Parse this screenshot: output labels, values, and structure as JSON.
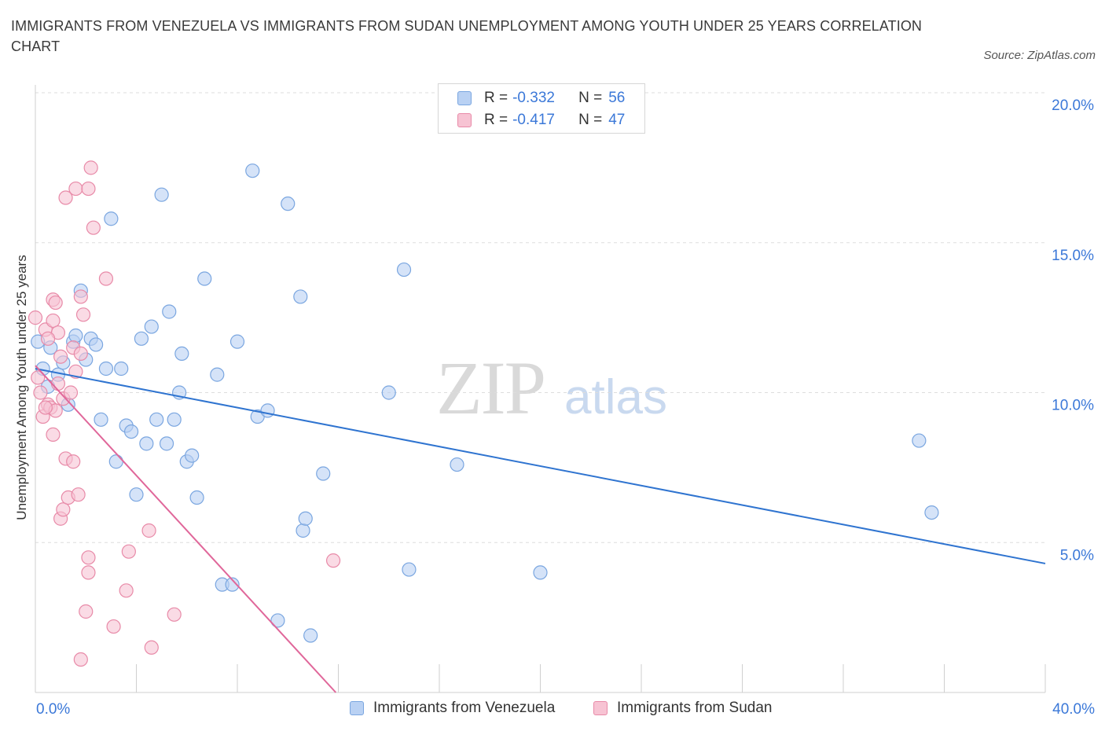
{
  "title": "IMMIGRANTS FROM VENEZUELA VS IMMIGRANTS FROM SUDAN UNEMPLOYMENT AMONG YOUTH UNDER 25 YEARS CORRELATION CHART",
  "source": "Source: ZipAtlas.com",
  "watermark": {
    "zip": "ZIP",
    "atlas": "atlas"
  },
  "legend_top": [
    {
      "r_label": "R =",
      "r_value": "-0.332",
      "n_label": "N =",
      "n_value": "56"
    },
    {
      "r_label": "R =",
      "r_value": "-0.417",
      "n_label": "N =",
      "n_value": "47"
    }
  ],
  "legend_bottom": [
    "Immigrants from Venezuela",
    "Immigrants from Sudan"
  ],
  "colors": {
    "venezuela_fill": "#b9d1f3",
    "venezuela_stroke": "#7aa6e0",
    "venezuela_line": "#2f74d0",
    "sudan_fill": "#f7c3d3",
    "sudan_stroke": "#e88aa8",
    "sudan_line": "#e0679a",
    "axis_label": "#3b78d8",
    "grid": "#dddddd"
  },
  "chart_data": {
    "type": "scatter",
    "title": "IMMIGRANTS FROM VENEZUELA VS IMMIGRANTS FROM SUDAN UNEMPLOYMENT AMONG YOUTH UNDER 25 YEARS CORRELATION CHART",
    "xlabel": "",
    "ylabel": "Unemployment Among Youth under 25 years",
    "xlim": [
      0,
      40
    ],
    "ylim": [
      0,
      20
    ],
    "x_tick_labels": [
      "0.0%",
      "40.0%"
    ],
    "y_ticks": [
      5,
      10,
      15,
      20
    ],
    "y_tick_labels": [
      "5.0%",
      "10.0%",
      "15.0%",
      "20.0%"
    ],
    "grid": true,
    "legend": "top-center",
    "series": [
      {
        "name": "Immigrants from Venezuela",
        "r": -0.332,
        "n": 56,
        "trend": {
          "x": [
            0,
            40
          ],
          "y": [
            10.8,
            4.3
          ]
        },
        "points": [
          [
            0.1,
            11.7
          ],
          [
            0.3,
            10.8
          ],
          [
            0.5,
            10.2
          ],
          [
            0.6,
            11.5
          ],
          [
            0.9,
            10.6
          ],
          [
            1.1,
            11.0
          ],
          [
            1.3,
            9.6
          ],
          [
            1.5,
            11.7
          ],
          [
            1.6,
            11.9
          ],
          [
            1.8,
            13.4
          ],
          [
            2.0,
            11.1
          ],
          [
            2.2,
            11.8
          ],
          [
            2.4,
            11.6
          ],
          [
            2.6,
            9.1
          ],
          [
            2.8,
            10.8
          ],
          [
            3.0,
            15.8
          ],
          [
            3.2,
            7.7
          ],
          [
            3.4,
            10.8
          ],
          [
            3.6,
            8.9
          ],
          [
            3.8,
            8.7
          ],
          [
            4.0,
            6.6
          ],
          [
            4.2,
            11.8
          ],
          [
            4.4,
            8.3
          ],
          [
            4.6,
            12.2
          ],
          [
            4.8,
            9.1
          ],
          [
            5.0,
            16.6
          ],
          [
            5.2,
            8.3
          ],
          [
            5.3,
            12.7
          ],
          [
            5.5,
            9.1
          ],
          [
            5.7,
            10.0
          ],
          [
            5.8,
            11.3
          ],
          [
            6.0,
            7.7
          ],
          [
            6.2,
            7.9
          ],
          [
            6.4,
            6.5
          ],
          [
            6.7,
            13.8
          ],
          [
            7.2,
            10.6
          ],
          [
            7.4,
            3.6
          ],
          [
            7.8,
            3.6
          ],
          [
            8.0,
            11.7
          ],
          [
            8.6,
            17.4
          ],
          [
            8.8,
            9.2
          ],
          [
            9.2,
            9.4
          ],
          [
            9.6,
            2.4
          ],
          [
            10.0,
            16.3
          ],
          [
            10.5,
            13.2
          ],
          [
            10.6,
            5.4
          ],
          [
            10.7,
            5.8
          ],
          [
            10.9,
            1.9
          ],
          [
            11.4,
            7.3
          ],
          [
            14.0,
            10.0
          ],
          [
            14.6,
            14.1
          ],
          [
            14.8,
            4.1
          ],
          [
            16.7,
            7.6
          ],
          [
            20.0,
            4.0
          ],
          [
            35.0,
            8.4
          ],
          [
            35.5,
            6.0
          ]
        ]
      },
      {
        "name": "Immigrants from Sudan",
        "r": -0.417,
        "n": 47,
        "trend": {
          "x": [
            0,
            11.9
          ],
          "y": [
            10.9,
            0
          ]
        },
        "points": [
          [
            0.0,
            12.5
          ],
          [
            0.1,
            10.5
          ],
          [
            0.2,
            10.0
          ],
          [
            0.3,
            9.2
          ],
          [
            0.4,
            12.1
          ],
          [
            0.5,
            9.6
          ],
          [
            0.6,
            9.5
          ],
          [
            0.7,
            13.1
          ],
          [
            0.7,
            12.4
          ],
          [
            0.7,
            8.6
          ],
          [
            0.8,
            9.4
          ],
          [
            0.8,
            13.0
          ],
          [
            0.9,
            12.0
          ],
          [
            1.0,
            11.2
          ],
          [
            1.0,
            5.8
          ],
          [
            1.1,
            9.8
          ],
          [
            1.1,
            6.1
          ],
          [
            1.2,
            16.5
          ],
          [
            1.2,
            7.8
          ],
          [
            1.3,
            6.5
          ],
          [
            1.4,
            10.0
          ],
          [
            1.5,
            11.5
          ],
          [
            1.5,
            7.7
          ],
          [
            1.6,
            16.8
          ],
          [
            1.6,
            10.7
          ],
          [
            1.7,
            6.6
          ],
          [
            1.8,
            11.3
          ],
          [
            1.8,
            13.2
          ],
          [
            1.8,
            1.1
          ],
          [
            1.9,
            12.6
          ],
          [
            2.0,
            2.7
          ],
          [
            2.1,
            16.8
          ],
          [
            2.1,
            4.0
          ],
          [
            2.1,
            4.5
          ],
          [
            2.2,
            17.5
          ],
          [
            2.3,
            15.5
          ],
          [
            2.8,
            13.8
          ],
          [
            3.1,
            2.2
          ],
          [
            3.6,
            3.4
          ],
          [
            3.7,
            4.7
          ],
          [
            4.5,
            5.4
          ],
          [
            4.6,
            1.5
          ],
          [
            5.5,
            2.6
          ],
          [
            11.8,
            4.4
          ],
          [
            0.4,
            9.5
          ],
          [
            0.5,
            11.8
          ],
          [
            0.9,
            10.3
          ]
        ]
      }
    ]
  }
}
